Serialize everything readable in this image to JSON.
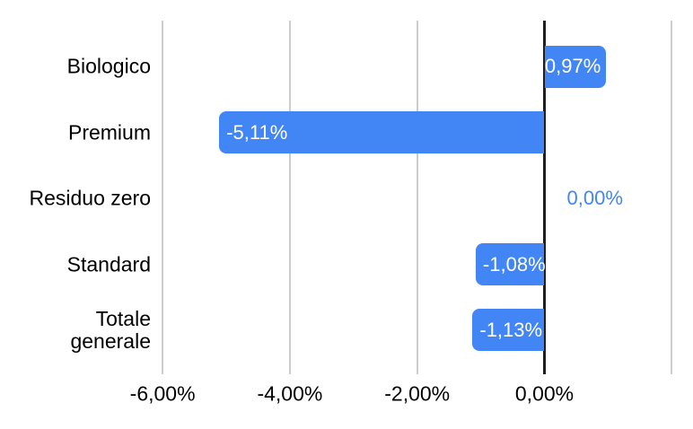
{
  "chart": {
    "background_color": "#ffffff",
    "bar_color": "#4285f4",
    "bar_label_color": "#ffffff",
    "zero_value_label_color": "#4285f4",
    "axis_line_color": "#1f1f1f",
    "gridline_color": "#cccccc",
    "text_color": "#000000"
  },
  "chart_data": {
    "type": "bar",
    "orientation": "horizontal",
    "title": "",
    "xlabel": "",
    "ylabel": "",
    "legend": "none",
    "grid": "vertical",
    "categories": [
      "Biologico",
      "Premium",
      "Residuo zero",
      "Standard",
      "Totale generale"
    ],
    "values": [
      0.97,
      -5.11,
      0,
      -1.08,
      -1.13
    ],
    "data_labels": [
      "0,97%",
      "-5,11%",
      "0,00%",
      "-1,08%",
      "-1,13%"
    ],
    "value_suffix": "%",
    "xlim": [
      -7,
      2.3
    ],
    "x_ticks": [
      {
        "value": -6,
        "label": "-6,00%"
      },
      {
        "value": -4,
        "label": "-4,00%"
      },
      {
        "value": -2,
        "label": "-2,00%"
      },
      {
        "value": 0,
        "label": "0,00%"
      }
    ],
    "x_extra_gridlines": [
      2
    ]
  }
}
